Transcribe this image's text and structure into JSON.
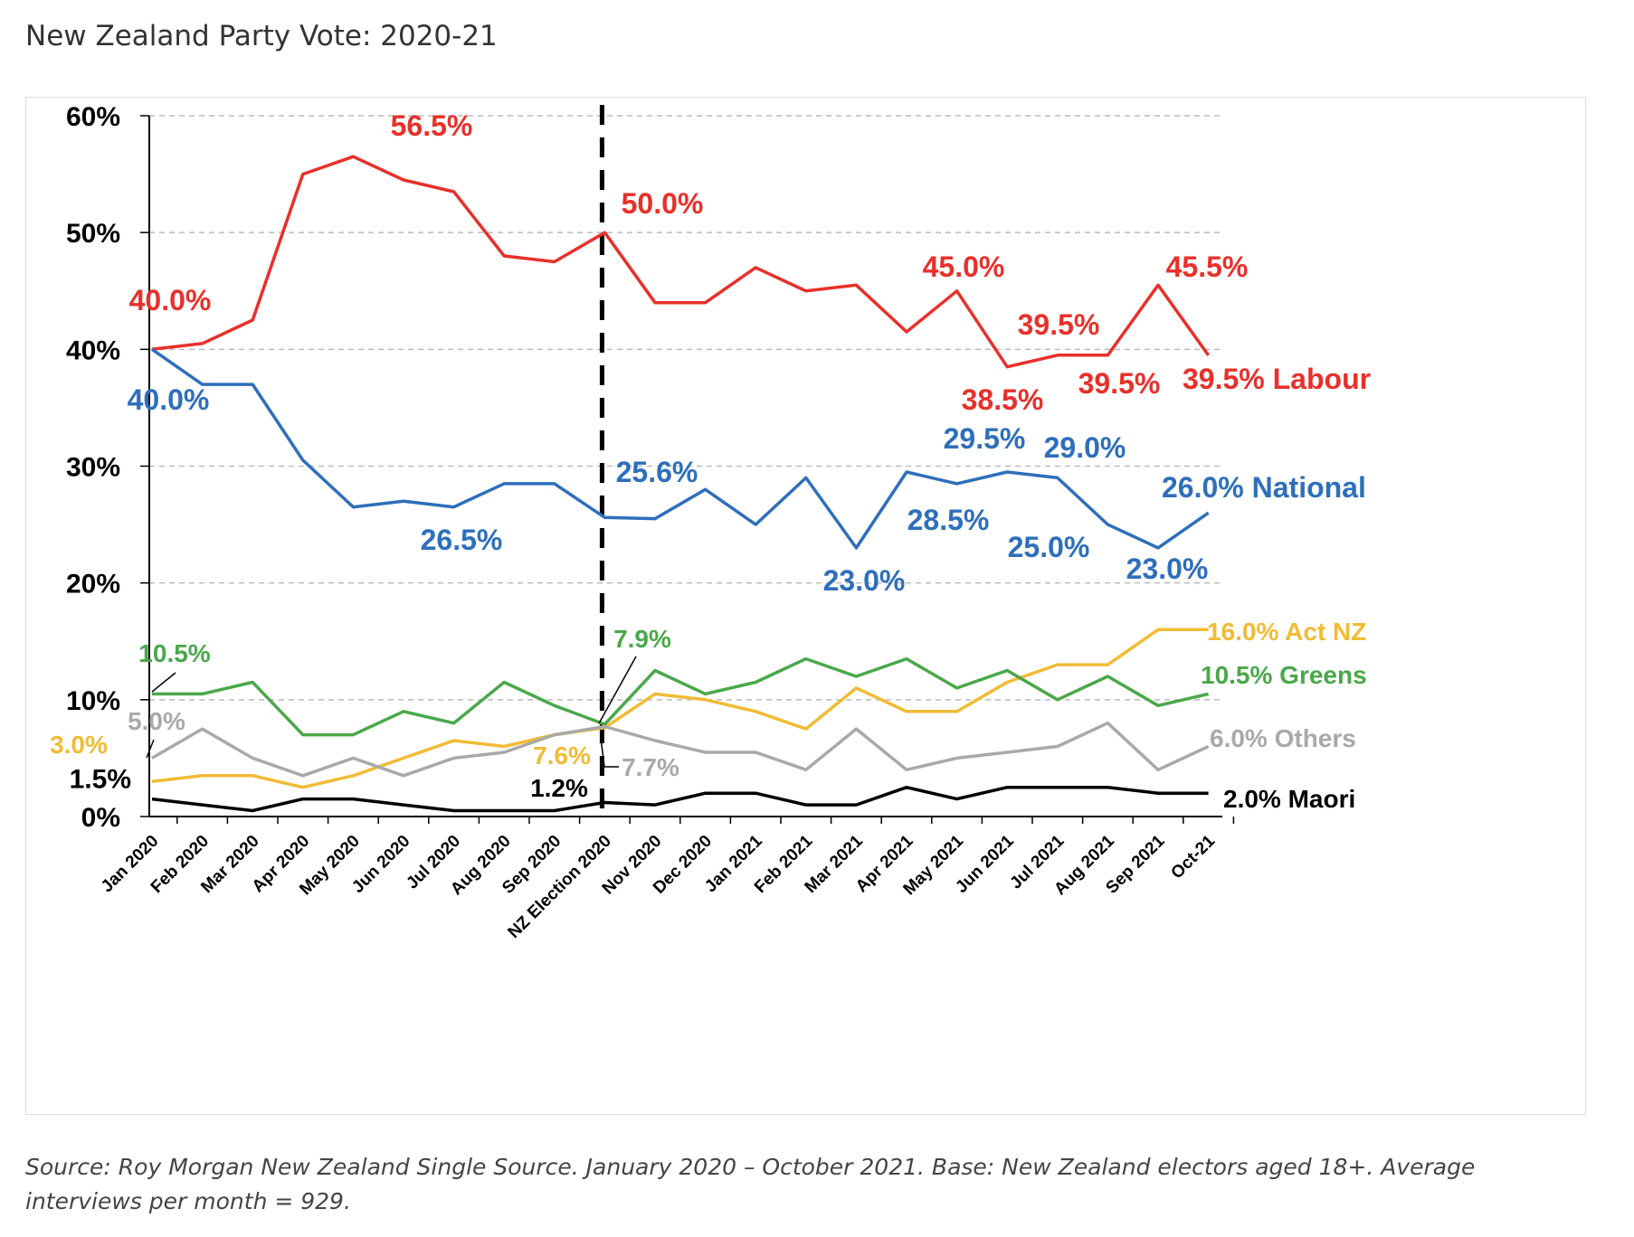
{
  "title": "New Zealand Party Vote: 2020-21",
  "source": {
    "source_label": "Source:",
    "source_text": " Roy Morgan New Zealand Single Source. January 2020 – October 2021. ",
    "base_label": "Base:",
    "base_text": " New Zealand electors aged 18+. Average interviews per month = 929."
  },
  "chart_data": {
    "type": "line",
    "title": "New Zealand Party Vote: 2020-21",
    "xlabel": "",
    "ylabel": "",
    "categories": [
      "Jan 2020",
      "Feb 2020",
      "Mar 2020",
      "Apr 2020",
      "May 2020",
      "Jun 2020",
      "Jul 2020",
      "Aug 2020",
      "Sep 2020",
      "NZ Election 2020",
      "Nov 2020",
      "Dec 2020",
      "Jan 2021",
      "Feb 2021",
      "Mar 2021",
      "Apr 2021",
      "May 2021",
      "Jun 2021",
      "Jul 2021",
      "Aug 2021",
      "Sep 2021",
      "Oct-21"
    ],
    "ylim": [
      0,
      60
    ],
    "yticks": [
      {
        "value": 0,
        "label": "0%"
      },
      {
        "value": 10,
        "label": "10%"
      },
      {
        "value": 20,
        "label": "20%"
      },
      {
        "value": 30,
        "label": "30%"
      },
      {
        "value": 40,
        "label": "40%"
      },
      {
        "value": 50,
        "label": "50%"
      },
      {
        "value": 60,
        "label": "60%"
      }
    ],
    "extra_ytick": {
      "value": 3.3,
      "label": "1.5%"
    },
    "grid": "horizontal dashed",
    "election_marker": "NZ Election 2020",
    "series": [
      {
        "name": "Labour",
        "color": "#e8302a",
        "values": [
          40.0,
          40.5,
          42.5,
          55.0,
          56.5,
          54.5,
          53.5,
          48.0,
          47.5,
          50.0,
          44.0,
          44.0,
          47.0,
          45.0,
          45.5,
          41.5,
          45.0,
          38.5,
          39.5,
          39.5,
          45.5,
          39.5
        ]
      },
      {
        "name": "National",
        "color": "#2e6fbb",
        "values": [
          40.0,
          37.0,
          37.0,
          30.5,
          26.5,
          27.0,
          26.5,
          28.5,
          28.5,
          25.6,
          25.5,
          28.0,
          25.0,
          29.0,
          23.0,
          29.5,
          28.5,
          29.5,
          29.0,
          25.0,
          23.0,
          26.0
        ]
      },
      {
        "name": "Act NZ",
        "color": "#f2bb34",
        "values": [
          3.0,
          3.5,
          3.5,
          2.5,
          3.5,
          5.0,
          6.5,
          6.0,
          7.0,
          7.6,
          10.5,
          10.0,
          9.0,
          7.5,
          11.0,
          9.0,
          9.0,
          11.5,
          13.0,
          13.0,
          16.0,
          16.0
        ]
      },
      {
        "name": "Greens",
        "color": "#4aa84a",
        "values": [
          10.5,
          10.5,
          11.5,
          7.0,
          7.0,
          9.0,
          8.0,
          11.5,
          9.5,
          7.9,
          12.5,
          10.5,
          11.5,
          13.5,
          12.0,
          13.5,
          11.0,
          12.5,
          10.0,
          12.0,
          9.5,
          10.5
        ]
      },
      {
        "name": "Others",
        "color": "#a9a9a9",
        "values": [
          5.0,
          7.5,
          5.0,
          3.5,
          5.0,
          3.5,
          5.0,
          5.5,
          7.0,
          7.7,
          6.5,
          5.5,
          5.5,
          4.0,
          7.5,
          4.0,
          5.0,
          5.5,
          6.0,
          8.0,
          4.0,
          6.0
        ]
      },
      {
        "name": "Maori",
        "color": "#000000",
        "values": [
          1.5,
          1.0,
          0.5,
          1.5,
          1.5,
          1.0,
          0.5,
          0.5,
          0.5,
          1.2,
          1.0,
          2.0,
          2.0,
          1.0,
          1.0,
          2.5,
          1.5,
          2.5,
          2.5,
          2.5,
          2.0,
          2.0
        ]
      }
    ],
    "annotations": [
      {
        "text": "56.5%",
        "color": "#e8302a"
      },
      {
        "text": "40.0%",
        "color": "#e8302a"
      },
      {
        "text": "50.0%",
        "color": "#e8302a"
      },
      {
        "text": "45.0%",
        "color": "#e8302a"
      },
      {
        "text": "45.5%",
        "color": "#e8302a"
      },
      {
        "text": "39.5%",
        "color": "#e8302a"
      },
      {
        "text": "38.5%",
        "color": "#e8302a"
      },
      {
        "text": "39.5%",
        "color": "#e8302a"
      },
      {
        "text": "39.5% Labour",
        "color": "#e8302a"
      },
      {
        "text": "40.0%",
        "color": "#2e6fbb"
      },
      {
        "text": "26.5%",
        "color": "#2e6fbb"
      },
      {
        "text": "25.6%",
        "color": "#2e6fbb"
      },
      {
        "text": "23.0%",
        "color": "#2e6fbb"
      },
      {
        "text": "29.5%",
        "color": "#2e6fbb"
      },
      {
        "text": "29.0%",
        "color": "#2e6fbb"
      },
      {
        "text": "28.5%",
        "color": "#2e6fbb"
      },
      {
        "text": "25.0%",
        "color": "#2e6fbb"
      },
      {
        "text": "23.0%",
        "color": "#2e6fbb"
      },
      {
        "text": "26.0% National",
        "color": "#2e6fbb"
      },
      {
        "text": "10.5%",
        "color": "#4aa84a"
      },
      {
        "text": "7.9%",
        "color": "#4aa84a"
      },
      {
        "text": "10.5% Greens",
        "color": "#4aa84a"
      },
      {
        "text": "3.0%",
        "color": "#f2bb34"
      },
      {
        "text": "7.6%",
        "color": "#f2bb34"
      },
      {
        "text": "16.0% Act NZ",
        "color": "#f2bb34"
      },
      {
        "text": "5.0%",
        "color": "#a9a9a9"
      },
      {
        "text": "7.7%",
        "color": "#a9a9a9"
      },
      {
        "text": "6.0% Others",
        "color": "#a9a9a9"
      },
      {
        "text": "1.2%",
        "color": "#000000"
      },
      {
        "text": "2.0% Maori",
        "color": "#000000"
      }
    ]
  }
}
